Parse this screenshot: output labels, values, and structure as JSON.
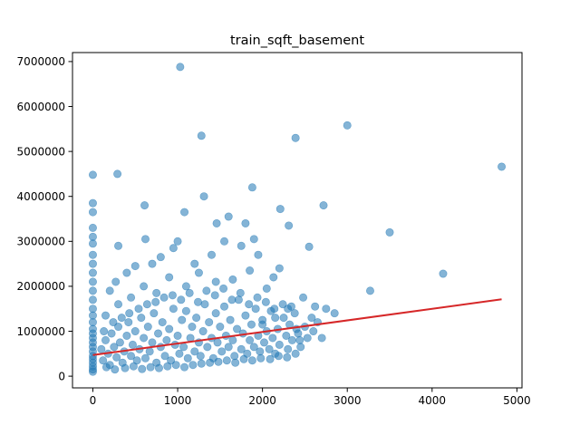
{
  "chart_data": {
    "type": "scatter",
    "title": "train_sqft_basement",
    "xlabel": "",
    "ylabel": "",
    "xlim": [
      -240,
      5060
    ],
    "ylim": [
      -260000,
      7200000
    ],
    "x_ticks": [
      0,
      1000,
      2000,
      3000,
      4000,
      5000
    ],
    "y_ticks": [
      0,
      1000000,
      2000000,
      3000000,
      4000000,
      5000000,
      6000000,
      7000000
    ],
    "x_tick_labels": [
      "0",
      "1000",
      "2000",
      "3000",
      "4000",
      "5000"
    ],
    "y_tick_labels": [
      "0",
      "1000000",
      "2000000",
      "3000000",
      "4000000",
      "5000000",
      "6000000",
      "7000000"
    ],
    "grid": false,
    "series": [
      {
        "name": "points",
        "kind": "scatter",
        "color": "#1f77b4",
        "alpha": 0.55,
        "points": [
          [
            0,
            4480000
          ],
          [
            0,
            3850000
          ],
          [
            0,
            3650000
          ],
          [
            0,
            3300000
          ],
          [
            0,
            3100000
          ],
          [
            0,
            2950000
          ],
          [
            0,
            2700000
          ],
          [
            0,
            2500000
          ],
          [
            0,
            2300000
          ],
          [
            0,
            2100000
          ],
          [
            0,
            1900000
          ],
          [
            0,
            1700000
          ],
          [
            0,
            1500000
          ],
          [
            0,
            1350000
          ],
          [
            0,
            1200000
          ],
          [
            0,
            1050000
          ],
          [
            0,
            950000
          ],
          [
            0,
            850000
          ],
          [
            0,
            750000
          ],
          [
            0,
            650000
          ],
          [
            0,
            550000
          ],
          [
            0,
            450000
          ],
          [
            0,
            380000
          ],
          [
            0,
            300000
          ],
          [
            0,
            220000
          ],
          [
            0,
            150000
          ],
          [
            0,
            100000
          ],
          [
            290,
            4500000
          ],
          [
            1030,
            6880000
          ],
          [
            1280,
            5350000
          ],
          [
            3000,
            5580000
          ],
          [
            2390,
            5300000
          ],
          [
            4820,
            4660000
          ],
          [
            1880,
            4200000
          ],
          [
            1310,
            4000000
          ],
          [
            1080,
            3650000
          ],
          [
            610,
            3800000
          ],
          [
            2210,
            3720000
          ],
          [
            2720,
            3800000
          ],
          [
            3500,
            3200000
          ],
          [
            2310,
            3350000
          ],
          [
            2550,
            2880000
          ],
          [
            300,
            2900000
          ],
          [
            620,
            3050000
          ],
          [
            1000,
            3000000
          ],
          [
            1460,
            3400000
          ],
          [
            1600,
            3550000
          ],
          [
            1800,
            3400000
          ],
          [
            1900,
            3050000
          ],
          [
            4130,
            2280000
          ],
          [
            3270,
            1900000
          ],
          [
            2850,
            1400000
          ],
          [
            2750,
            1500000
          ],
          [
            2480,
            1750000
          ],
          [
            2620,
            1550000
          ],
          [
            2700,
            850000
          ],
          [
            2440,
            800000
          ],
          [
            2130,
            2200000
          ],
          [
            2200,
            2400000
          ],
          [
            1950,
            2700000
          ],
          [
            1750,
            2900000
          ],
          [
            1550,
            3000000
          ],
          [
            1400,
            2700000
          ],
          [
            1200,
            2500000
          ],
          [
            950,
            2850000
          ],
          [
            800,
            2650000
          ],
          [
            700,
            2500000
          ],
          [
            500,
            2450000
          ],
          [
            400,
            2300000
          ],
          [
            270,
            2100000
          ],
          [
            200,
            1900000
          ],
          [
            150,
            1350000
          ],
          [
            300,
            1600000
          ],
          [
            450,
            1750000
          ],
          [
            600,
            2000000
          ],
          [
            750,
            1850000
          ],
          [
            900,
            2200000
          ],
          [
            1100,
            2000000
          ],
          [
            1250,
            2300000
          ],
          [
            1450,
            2100000
          ],
          [
            1650,
            2150000
          ],
          [
            1850,
            2350000
          ],
          [
            2050,
            1950000
          ],
          [
            2300,
            1500000
          ],
          [
            2150,
            1300000
          ],
          [
            2000,
            1150000
          ],
          [
            2400,
            1050000
          ],
          [
            100,
            600000
          ],
          [
            120,
            350000
          ],
          [
            150,
            800000
          ],
          [
            180,
            500000
          ],
          [
            200,
            250000
          ],
          [
            220,
            950000
          ],
          [
            250,
            650000
          ],
          [
            280,
            420000
          ],
          [
            300,
            1100000
          ],
          [
            320,
            750000
          ],
          [
            350,
            300000
          ],
          [
            370,
            550000
          ],
          [
            400,
            900000
          ],
          [
            420,
            1200000
          ],
          [
            450,
            450000
          ],
          [
            470,
            700000
          ],
          [
            500,
            1000000
          ],
          [
            520,
            350000
          ],
          [
            550,
            600000
          ],
          [
            570,
            1300000
          ],
          [
            600,
            850000
          ],
          [
            620,
            400000
          ],
          [
            650,
            1100000
          ],
          [
            670,
            550000
          ],
          [
            700,
            750000
          ],
          [
            720,
            1400000
          ],
          [
            750,
            300000
          ],
          [
            770,
            950000
          ],
          [
            800,
            650000
          ],
          [
            820,
            1200000
          ],
          [
            850,
            450000
          ],
          [
            870,
            800000
          ],
          [
            900,
            1050000
          ],
          [
            920,
            350000
          ],
          [
            950,
            1500000
          ],
          [
            970,
            700000
          ],
          [
            1000,
            900000
          ],
          [
            1020,
            500000
          ],
          [
            1050,
            1250000
          ],
          [
            1070,
            650000
          ],
          [
            1100,
            1450000
          ],
          [
            1120,
            400000
          ],
          [
            1150,
            850000
          ],
          [
            1170,
            1100000
          ],
          [
            1200,
            550000
          ],
          [
            1220,
            1300000
          ],
          [
            1250,
            750000
          ],
          [
            1270,
            450000
          ],
          [
            1300,
            1000000
          ],
          [
            1320,
            1600000
          ],
          [
            1350,
            650000
          ],
          [
            1370,
            1200000
          ],
          [
            1400,
            850000
          ],
          [
            1420,
            400000
          ],
          [
            1450,
            1400000
          ],
          [
            1470,
            750000
          ],
          [
            1500,
            1100000
          ],
          [
            1520,
            550000
          ],
          [
            1550,
            1550000
          ],
          [
            1570,
            900000
          ],
          [
            1600,
            650000
          ],
          [
            1620,
            1250000
          ],
          [
            1650,
            800000
          ],
          [
            1670,
            450000
          ],
          [
            1700,
            1050000
          ],
          [
            1720,
            1700000
          ],
          [
            1750,
            600000
          ],
          [
            1770,
            950000
          ],
          [
            1800,
            1350000
          ],
          [
            1820,
            500000
          ],
          [
            1850,
            800000
          ],
          [
            1870,
            1150000
          ],
          [
            1900,
            650000
          ],
          [
            1920,
            1500000
          ],
          [
            1950,
            900000
          ],
          [
            1970,
            550000
          ],
          [
            2000,
            1250000
          ],
          [
            2020,
            750000
          ],
          [
            2050,
            1000000
          ],
          [
            2080,
            600000
          ],
          [
            2100,
            1450000
          ],
          [
            2120,
            850000
          ],
          [
            2150,
            500000
          ],
          [
            2180,
            1050000
          ],
          [
            2200,
            700000
          ],
          [
            2250,
            1300000
          ],
          [
            2280,
            900000
          ],
          [
            2300,
            600000
          ],
          [
            2320,
            1150000
          ],
          [
            2350,
            800000
          ],
          [
            2380,
            1400000
          ],
          [
            2420,
            950000
          ],
          [
            2450,
            650000
          ],
          [
            2500,
            1100000
          ],
          [
            2530,
            850000
          ],
          [
            2580,
            1300000
          ],
          [
            2600,
            1000000
          ],
          [
            2650,
            1200000
          ],
          [
            130,
            1000000
          ],
          [
            160,
            200000
          ],
          [
            240,
            1200000
          ],
          [
            260,
            150000
          ],
          [
            340,
            1300000
          ],
          [
            380,
            180000
          ],
          [
            430,
            1400000
          ],
          [
            480,
            220000
          ],
          [
            540,
            1500000
          ],
          [
            580,
            160000
          ],
          [
            640,
            1600000
          ],
          [
            680,
            200000
          ],
          [
            740,
            1650000
          ],
          [
            780,
            180000
          ],
          [
            840,
            1750000
          ],
          [
            880,
            220000
          ],
          [
            940,
            1800000
          ],
          [
            980,
            250000
          ],
          [
            1040,
            1700000
          ],
          [
            1080,
            200000
          ],
          [
            1140,
            1850000
          ],
          [
            1180,
            250000
          ],
          [
            1240,
            1650000
          ],
          [
            1280,
            280000
          ],
          [
            1340,
            1900000
          ],
          [
            1380,
            300000
          ],
          [
            1440,
            1800000
          ],
          [
            1480,
            320000
          ],
          [
            1540,
            1950000
          ],
          [
            1580,
            350000
          ],
          [
            1640,
            1700000
          ],
          [
            1680,
            300000
          ],
          [
            1740,
            1850000
          ],
          [
            1780,
            380000
          ],
          [
            1840,
            1600000
          ],
          [
            1880,
            350000
          ],
          [
            1940,
            1750000
          ],
          [
            1980,
            400000
          ],
          [
            2040,
            1650000
          ],
          [
            2090,
            380000
          ],
          [
            2140,
            1500000
          ],
          [
            2190,
            450000
          ],
          [
            2240,
            1600000
          ],
          [
            2290,
            420000
          ],
          [
            2340,
            1550000
          ],
          [
            2390,
            500000
          ]
        ]
      },
      {
        "name": "regression line",
        "kind": "line",
        "color": "#d62728",
        "x": [
          0,
          4820
        ],
        "y": [
          470000,
          1710000
        ]
      }
    ]
  }
}
